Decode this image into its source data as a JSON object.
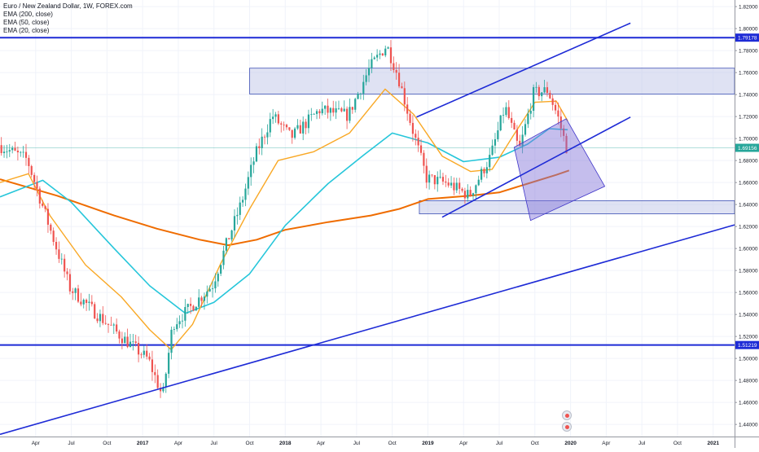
{
  "legend": {
    "symbol": "Euro / New Zealand Dollar, 1W, FOREX.com",
    "ema200": "EMA (200, close)",
    "ema50": "EMA (50, close)",
    "ema20": "EMA (20, close)"
  },
  "colors": {
    "up": "#26a69a",
    "down": "#ef5350",
    "ema200": "#ef6c00",
    "ema50": "#26c6da",
    "ema20": "#f9a825",
    "level": "#1e2bd6",
    "zone_fill": "#c5cae9",
    "zone_stroke": "#3f51b5",
    "last_price": "#26a69a"
  },
  "chart_data": {
    "type": "candlestick",
    "time_labels": [
      "Apr",
      "Jul",
      "Oct",
      "2017",
      "Apr",
      "Jul",
      "Oct",
      "2018",
      "Apr",
      "Jul",
      "Oct",
      "2019",
      "Apr",
      "Jul",
      "Oct",
      "2020",
      "Apr",
      "Jul",
      "Oct",
      "2021"
    ],
    "price_ticks": [
      "1.82000",
      "1.80000",
      "1.78000",
      "1.76000",
      "1.74000",
      "1.72000",
      "1.70000",
      "1.68000",
      "1.66000",
      "1.64000",
      "1.62000",
      "1.60000",
      "1.58000",
      "1.56000",
      "1.54000",
      "1.52000",
      "1.50000",
      "1.48000",
      "1.46000",
      "1.44000"
    ],
    "y_range": [
      1.429,
      1.826
    ],
    "x_range": [
      2016.0,
      2021.15
    ],
    "horizontal_levels": [
      {
        "price": 1.79178,
        "label": "1.79178"
      },
      {
        "price": 1.51219,
        "label": "1.51219"
      }
    ],
    "last_price": {
      "price": 1.69156,
      "label": "1.69156"
    },
    "zones": [
      {
        "t0": 2017.75,
        "t1": 2021.15,
        "p_top": 1.764,
        "p_bottom": 1.7405
      },
      {
        "t0": 2018.94,
        "t1": 2021.15,
        "p_top": 1.6435,
        "p_bottom": 1.6315
      }
    ],
    "trendlines": [
      {
        "t0": 2016.0,
        "p0": 1.431,
        "t1": 2021.15,
        "p1": 1.6215
      },
      {
        "t0": 2018.92,
        "p0": 1.7195,
        "t1": 2020.42,
        "p1": 1.805
      },
      {
        "t0": 2019.1,
        "p0": 1.6285,
        "t1": 2020.42,
        "p1": 1.7195
      }
    ],
    "channel_box": [
      [
        2019.605,
        1.692
      ],
      [
        2019.97,
        1.718
      ],
      [
        2020.24,
        1.6565
      ],
      [
        2019.72,
        1.6255
      ]
    ],
    "ema200": [
      [
        2016.0,
        1.663
      ],
      [
        2016.4,
        1.648
      ],
      [
        2016.8,
        1.63
      ],
      [
        2017.1,
        1.618
      ],
      [
        2017.4,
        1.608
      ],
      [
        2017.6,
        1.603
      ],
      [
        2017.8,
        1.608
      ],
      [
        2018.0,
        1.617
      ],
      [
        2018.3,
        1.624
      ],
      [
        2018.6,
        1.63
      ],
      [
        2018.8,
        1.636
      ],
      [
        2019.0,
        1.645
      ],
      [
        2019.3,
        1.648
      ],
      [
        2019.5,
        1.651
      ],
      [
        2019.7,
        1.659
      ],
      [
        2019.9,
        1.667
      ],
      [
        2019.99,
        1.671
      ]
    ],
    "ema50": [
      [
        2016.0,
        1.647
      ],
      [
        2016.3,
        1.662
      ],
      [
        2016.5,
        1.642
      ],
      [
        2016.8,
        1.6
      ],
      [
        2017.05,
        1.566
      ],
      [
        2017.3,
        1.541
      ],
      [
        2017.5,
        1.551
      ],
      [
        2017.75,
        1.577
      ],
      [
        2018.0,
        1.621
      ],
      [
        2018.3,
        1.659
      ],
      [
        2018.55,
        1.685
      ],
      [
        2018.75,
        1.705
      ],
      [
        2019.0,
        1.696
      ],
      [
        2019.25,
        1.679
      ],
      [
        2019.5,
        1.683
      ],
      [
        2019.7,
        1.695
      ],
      [
        2019.85,
        1.709
      ],
      [
        2019.98,
        1.708
      ]
    ],
    "ema20": [
      [
        2016.0,
        1.66
      ],
      [
        2016.2,
        1.668
      ],
      [
        2016.35,
        1.63
      ],
      [
        2016.6,
        1.585
      ],
      [
        2016.85,
        1.556
      ],
      [
        2017.05,
        1.526
      ],
      [
        2017.2,
        1.508
      ],
      [
        2017.35,
        1.531
      ],
      [
        2017.55,
        1.587
      ],
      [
        2017.75,
        1.636
      ],
      [
        2017.95,
        1.68
      ],
      [
        2018.2,
        1.688
      ],
      [
        2018.45,
        1.705
      ],
      [
        2018.7,
        1.745
      ],
      [
        2018.9,
        1.722
      ],
      [
        2019.1,
        1.684
      ],
      [
        2019.3,
        1.67
      ],
      [
        2019.45,
        1.672
      ],
      [
        2019.6,
        1.703
      ],
      [
        2019.75,
        1.733
      ],
      [
        2019.9,
        1.734
      ],
      [
        2019.98,
        1.716
      ]
    ],
    "price_path": [
      [
        2016.0,
        1.694
      ],
      [
        2016.2,
        1.681
      ],
      [
        2016.35,
        1.622
      ],
      [
        2016.5,
        1.564
      ],
      [
        2016.65,
        1.545
      ],
      [
        2016.85,
        1.521
      ],
      [
        2017.05,
        1.499
      ],
      [
        2017.15,
        1.465
      ],
      [
        2017.22,
        1.531
      ],
      [
        2017.35,
        1.547
      ],
      [
        2017.5,
        1.567
      ],
      [
        2017.6,
        1.605
      ],
      [
        2017.7,
        1.641
      ],
      [
        2017.8,
        1.685
      ],
      [
        2017.92,
        1.721
      ],
      [
        2018.05,
        1.701
      ],
      [
        2018.25,
        1.726
      ],
      [
        2018.45,
        1.721
      ],
      [
        2018.6,
        1.764
      ],
      [
        2018.72,
        1.785
      ],
      [
        2018.8,
        1.757
      ],
      [
        2018.9,
        1.709
      ],
      [
        2019.0,
        1.664
      ],
      [
        2019.15,
        1.659
      ],
      [
        2019.3,
        1.648
      ],
      [
        2019.45,
        1.684
      ],
      [
        2019.55,
        1.729
      ],
      [
        2019.65,
        1.689
      ],
      [
        2019.75,
        1.741
      ],
      [
        2019.85,
        1.744
      ],
      [
        2019.92,
        1.72
      ],
      [
        2019.98,
        1.692
      ]
    ]
  }
}
